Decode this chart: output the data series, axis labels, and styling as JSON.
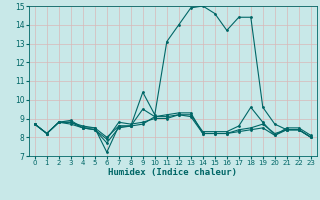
{
  "xlabel": "Humidex (Indice chaleur)",
  "xlim": [
    -0.5,
    23.5
  ],
  "ylim": [
    7,
    15
  ],
  "yticks": [
    7,
    8,
    9,
    10,
    11,
    12,
    13,
    14,
    15
  ],
  "xticks": [
    0,
    1,
    2,
    3,
    4,
    5,
    6,
    7,
    8,
    9,
    10,
    11,
    12,
    13,
    14,
    15,
    16,
    17,
    18,
    19,
    20,
    21,
    22,
    23
  ],
  "bg_color": "#c8e8e8",
  "line_color": "#006666",
  "grid_color": "#d8b8b8",
  "lines": [
    {
      "x": [
        0,
        1,
        2,
        3,
        4,
        5,
        6,
        7,
        8,
        9,
        10,
        11,
        12,
        13,
        14,
        15,
        16,
        17,
        18,
        19,
        20,
        21,
        22,
        23
      ],
      "y": [
        8.7,
        8.2,
        8.8,
        8.8,
        8.5,
        8.5,
        7.2,
        8.6,
        8.6,
        10.4,
        9.2,
        13.1,
        14.0,
        14.9,
        15.0,
        14.6,
        13.7,
        14.4,
        14.4,
        9.6,
        8.7,
        8.4,
        8.4,
        8.0
      ]
    },
    {
      "x": [
        0,
        1,
        2,
        3,
        4,
        5,
        6,
        7,
        8,
        9,
        10,
        11,
        12,
        13,
        14,
        15,
        16,
        17,
        18,
        19,
        20,
        21,
        22,
        23
      ],
      "y": [
        8.7,
        8.2,
        8.8,
        8.7,
        8.5,
        8.4,
        7.7,
        8.5,
        8.6,
        9.5,
        9.1,
        9.2,
        9.3,
        9.3,
        8.2,
        8.2,
        8.2,
        8.3,
        8.4,
        8.5,
        8.1,
        8.4,
        8.4,
        8.0
      ]
    },
    {
      "x": [
        0,
        1,
        2,
        3,
        4,
        5,
        6,
        7,
        8,
        9,
        10,
        11,
        12,
        13,
        14,
        15,
        16,
        17,
        18,
        19,
        20,
        21,
        22,
        23
      ],
      "y": [
        8.7,
        8.2,
        8.8,
        8.9,
        8.5,
        8.4,
        7.9,
        8.8,
        8.7,
        8.8,
        9.0,
        9.0,
        9.2,
        9.1,
        8.2,
        8.2,
        8.2,
        8.4,
        8.5,
        8.7,
        8.2,
        8.4,
        8.4,
        8.0
      ]
    },
    {
      "x": [
        0,
        1,
        2,
        3,
        4,
        5,
        6,
        7,
        8,
        9,
        10,
        11,
        12,
        13,
        14,
        15,
        16,
        17,
        18,
        19,
        20,
        21,
        22,
        23
      ],
      "y": [
        8.7,
        8.2,
        8.8,
        8.8,
        8.6,
        8.5,
        8.0,
        8.6,
        8.6,
        8.7,
        9.1,
        9.1,
        9.2,
        9.2,
        8.3,
        8.3,
        8.3,
        8.6,
        9.6,
        8.8,
        8.1,
        8.5,
        8.5,
        8.1
      ]
    }
  ]
}
